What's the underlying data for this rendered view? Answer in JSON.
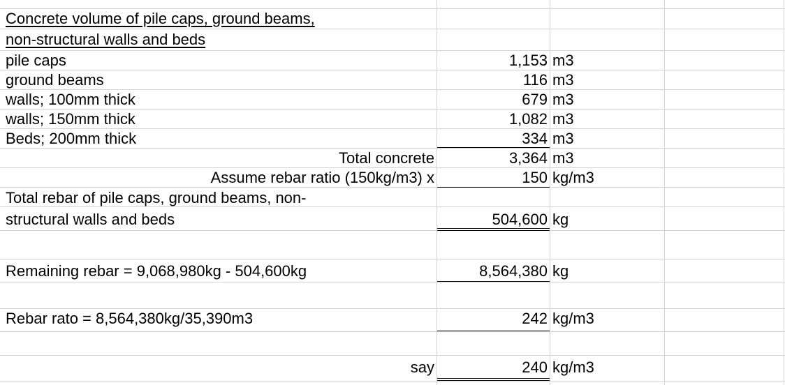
{
  "rows": [
    {
      "a": "Concrete volume of pile caps, ground beams,",
      "b": "",
      "c": ""
    },
    {
      "a": "non-structural walls and beds",
      "b": "",
      "c": ""
    },
    {
      "a": "pile caps",
      "b": "1,153",
      "c": "m3"
    },
    {
      "a": "ground beams",
      "b": "116",
      "c": "m3"
    },
    {
      "a": "walls; 100mm thick",
      "b": "679",
      "c": "m3"
    },
    {
      "a": "walls; 150mm thick",
      "b": "1,082",
      "c": "m3"
    },
    {
      "a": "Beds; 200mm thick",
      "b": "334",
      "c": "m3"
    },
    {
      "a": "Total concrete",
      "b": "3,364",
      "c": "m3"
    },
    {
      "a": "Assume rebar ratio (150kg/m3) x",
      "b": "150",
      "c": "kg/m3"
    },
    {
      "a": "Total rebar of pile caps, ground beams, non-",
      "b": "",
      "c": ""
    },
    {
      "a": "structural walls and beds",
      "b": "504,600",
      "c": "kg"
    },
    {
      "a": "",
      "b": "",
      "c": ""
    },
    {
      "a": "Remaining rebar = 9,068,980kg - 504,600kg",
      "b": "8,564,380",
      "c": "kg"
    },
    {
      "a": "Rebar rato = 8,564,380kg/35,390m3",
      "b": "242",
      "c": "kg/m3"
    },
    {
      "a": "say",
      "b": "240",
      "c": "kg/m3"
    }
  ]
}
